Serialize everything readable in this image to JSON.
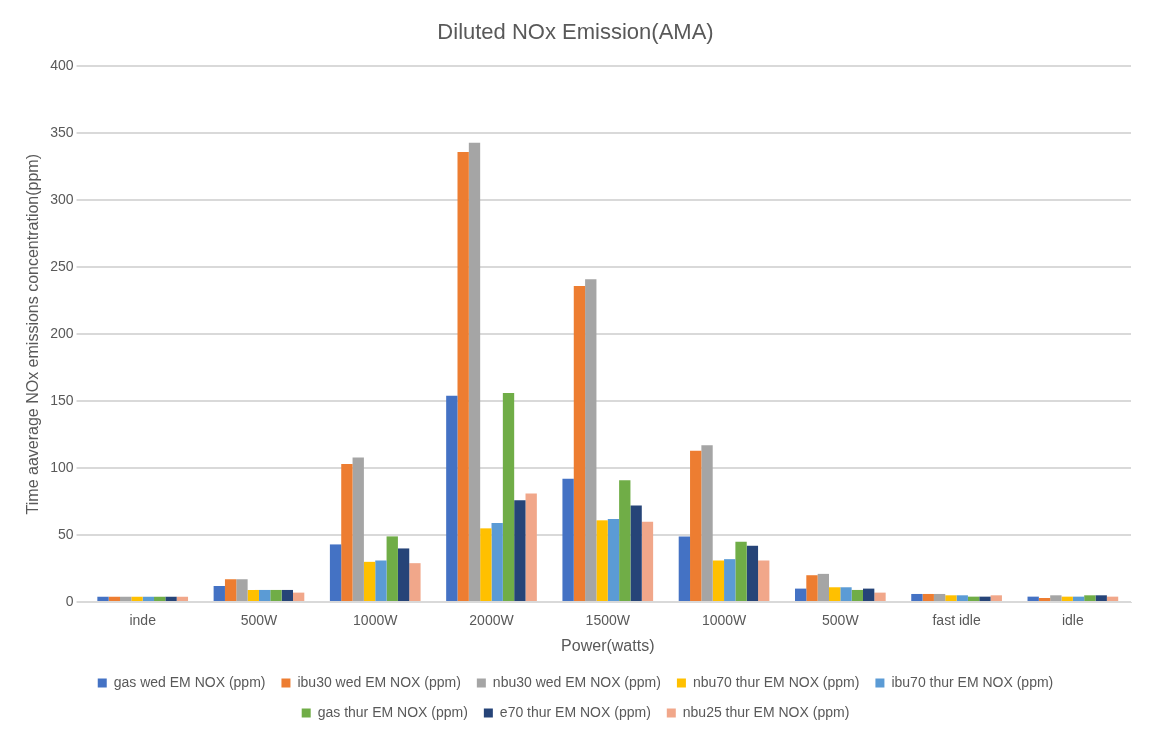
{
  "chart_data": {
    "type": "bar",
    "title": "Diluted NOx Emission(AMA)",
    "xlabel": "Power(watts)",
    "ylabel": "Time aaverage NOx emissions concentration(ppm)",
    "categories": [
      "inde",
      "500W",
      "1000W",
      "2000W",
      "1500W",
      "1000W",
      "500W",
      "fast idle",
      "idle"
    ],
    "series": [
      {
        "name": "gas wed EM NOX (ppm)",
        "color": "#4472c4",
        "values": [
          4,
          12,
          43,
          154,
          92,
          49,
          10,
          6,
          4
        ]
      },
      {
        "name": "ibu30 wed EM NOX (ppm)",
        "color": "#ed7d31",
        "values": [
          4,
          17,
          103,
          336,
          236,
          113,
          20,
          6,
          3
        ]
      },
      {
        "name": "nbu30 wed EM NOX (ppm)",
        "color": "#a5a5a5",
        "values": [
          4,
          17,
          108,
          343,
          241,
          117,
          21,
          6,
          5
        ]
      },
      {
        "name": "nbu70 thur EM NOX (ppm)",
        "color": "#ffc000",
        "values": [
          4,
          9,
          30,
          55,
          61,
          31,
          11,
          5,
          4
        ]
      },
      {
        "name": "ibu70 thur EM NOX (ppm)",
        "color": "#5b9bd5",
        "values": [
          4,
          9,
          31,
          59,
          62,
          32,
          11,
          5,
          4
        ]
      },
      {
        "name": "gas thur EM NOX (ppm)",
        "color": "#70ad47",
        "values": [
          4,
          9,
          49,
          156,
          91,
          45,
          9,
          4,
          5
        ]
      },
      {
        "name": "e70 thur EM NOX (ppm)",
        "color": "#264478",
        "values": [
          4,
          9,
          40,
          76,
          72,
          42,
          10,
          4,
          5
        ]
      },
      {
        "name": "nbu25 thur EM NOX (ppm)",
        "color": "#f1a78a",
        "values": [
          4,
          7,
          29,
          81,
          60,
          31,
          7,
          5,
          4
        ]
      }
    ],
    "ylim": [
      0,
      400
    ],
    "yticks": [
      0,
      50,
      100,
      150,
      200,
      250,
      300,
      350,
      400
    ],
    "grid": "y",
    "legend": "bottom"
  }
}
